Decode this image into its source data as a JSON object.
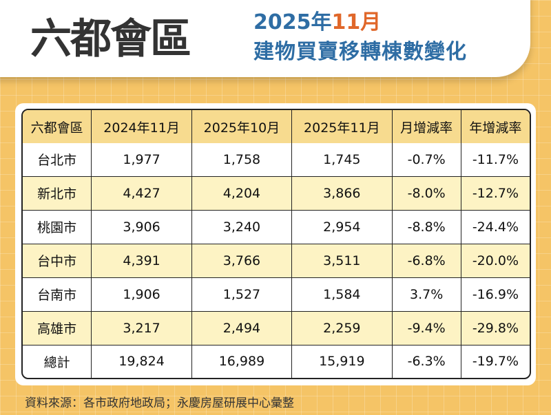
{
  "header": {
    "title": "六都會區",
    "subtitle_year": "2025年",
    "subtitle_month": "11月",
    "subtitle_line2": "建物買賣移轉棟數變化"
  },
  "colors": {
    "background": "#F5C466",
    "header_row": "#F7DB8F",
    "alt_row": "#FDF3C4",
    "title_blue": "#2E6DA4",
    "accent_orange": "#E0672A"
  },
  "chart_data": {
    "type": "table",
    "columns": [
      "六都會區",
      "2024年11月",
      "2025年10月",
      "2025年11月",
      "月增減率",
      "年增減率"
    ],
    "rows": [
      [
        "台北市",
        "1,977",
        "1,758",
        "1,745",
        "-0.7%",
        "-11.7%"
      ],
      [
        "新北市",
        "4,427",
        "4,204",
        "3,866",
        "-8.0%",
        "-12.7%"
      ],
      [
        "桃園市",
        "3,906",
        "3,240",
        "2,954",
        "-8.8%",
        "-24.4%"
      ],
      [
        "台中市",
        "4,391",
        "3,766",
        "3,511",
        "-6.8%",
        "-20.0%"
      ],
      [
        "台南市",
        "1,906",
        "1,527",
        "1,584",
        "3.7%",
        "-16.9%"
      ],
      [
        "高雄市",
        "3,217",
        "2,494",
        "2,259",
        "-9.4%",
        "-29.8%"
      ],
      [
        "總計",
        "19,824",
        "16,989",
        "15,919",
        "-6.3%",
        "-19.7%"
      ]
    ]
  },
  "footer": {
    "source": "資料來源：各市政府地政局；永慶房屋研展中心彙整"
  }
}
